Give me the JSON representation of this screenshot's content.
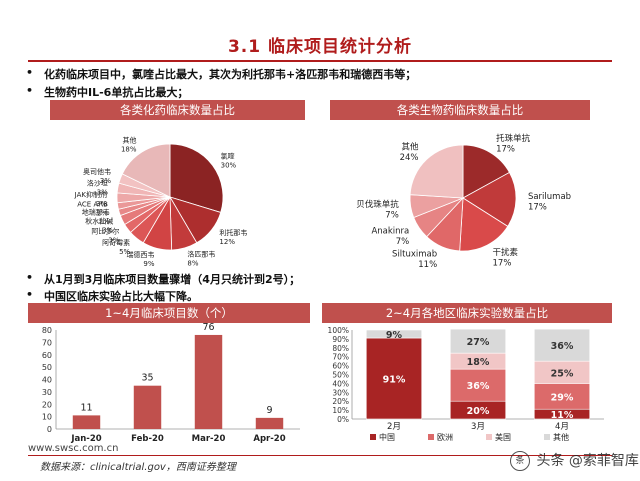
{
  "slide": {
    "title": "3.1 临床项目统计分析",
    "bullets_top": [
      "化药临床项目中，氯喹占比最大，其次为利托那韦+洛匹那韦和瑞德西韦等；",
      "生物药中IL-6单抗占比最大；"
    ],
    "bullets_mid": [
      "从1月到3月临床项目数量骤增（4月只统计到2号）；",
      "中国区临床实验占比大幅下降。"
    ],
    "footer_url": "www.swsc.com.cn",
    "footer_source": "数据来源：clinicaltrial.gov，西南证券整理",
    "watermark": "头条 @索菲智库",
    "watermark_badge": "条"
  },
  "chart_data": [
    {
      "type": "pie",
      "title": "各类化药临床数量占比",
      "labels": [
        "氯喹",
        "利托那韦",
        "洛匹那韦",
        "瑞德西韦",
        "阿奇霉素",
        "阿比多尔",
        "秋水仙碱",
        "地瑞那韦",
        "ACE ARB",
        "JAK抑制剂",
        "洛沙坦",
        "奥司他韦",
        "其他"
      ],
      "values": [
        30,
        12,
        8,
        9,
        5,
        3,
        3,
        2,
        2,
        3,
        3,
        3,
        18
      ],
      "value_labels": [
        "30%",
        "12%",
        "8%",
        "9%",
        "5%",
        "3%",
        "3%",
        "2%",
        "2%",
        "3%",
        "3%",
        "3%",
        "18%"
      ],
      "colors": [
        "#8b2323",
        "#ad2e2e",
        "#c23b3b",
        "#d14444",
        "#dc5656",
        "#e36868",
        "#e57a7a",
        "#e78888",
        "#ea9898",
        "#eda8a8",
        "#f0b6b6",
        "#f2c2c2",
        "#e8b8b8"
      ]
    },
    {
      "type": "pie",
      "title": "各类生物药临床数量占比",
      "labels": [
        "托珠单抗",
        "Sarilumab",
        "干扰素",
        "Siltuximab",
        "Anakinra",
        "贝伐珠单抗",
        "其他"
      ],
      "values": [
        17,
        17,
        17,
        11,
        7,
        7,
        24
      ],
      "value_labels": [
        "17%",
        "17%",
        "17%",
        "11%",
        "7%",
        "7%",
        "24%"
      ],
      "colors": [
        "#9c2a2a",
        "#c03a3a",
        "#d94a4a",
        "#e06868",
        "#e68484",
        "#eba0a0",
        "#f0c0c0"
      ]
    },
    {
      "type": "bar",
      "title": "1~4月临床项目数（个）",
      "categories": [
        "Jan-20",
        "Feb-20",
        "Mar-20",
        "Apr-20"
      ],
      "values": [
        11,
        35,
        76,
        9
      ],
      "ylim": [
        0,
        80
      ],
      "yticks": [
        0,
        10,
        20,
        30,
        40,
        50,
        60,
        70,
        80
      ],
      "grid": false,
      "color": "#c0504d"
    },
    {
      "type": "bar",
      "stacked": true,
      "percent": true,
      "title": "2~4月各地区临床实验数量占比",
      "categories": [
        "2月",
        "3月",
        "4月"
      ],
      "yticks": [
        "0%",
        "10%",
        "20%",
        "30%",
        "40%",
        "50%",
        "60%",
        "70%",
        "80%",
        "90%",
        "100%"
      ],
      "series": [
        {
          "name": "中国",
          "values": [
            91,
            20,
            11
          ],
          "labels": [
            "91%",
            "20%",
            "11%"
          ],
          "color": "#a82424"
        },
        {
          "name": "欧洲",
          "values": [
            0,
            36,
            29
          ],
          "labels": [
            "",
            "36%",
            "29%"
          ],
          "color": "#dc6a6a"
        },
        {
          "name": "美国",
          "values": [
            0,
            18,
            25
          ],
          "labels": [
            "",
            "18%",
            "25%"
          ],
          "color": "#f1c6c6"
        },
        {
          "name": "其他",
          "values": [
            9,
            27,
            36
          ],
          "labels": [
            "9%",
            "27%",
            "36%"
          ],
          "color": "#d9d9d9"
        }
      ],
      "legend": "bottom"
    }
  ]
}
